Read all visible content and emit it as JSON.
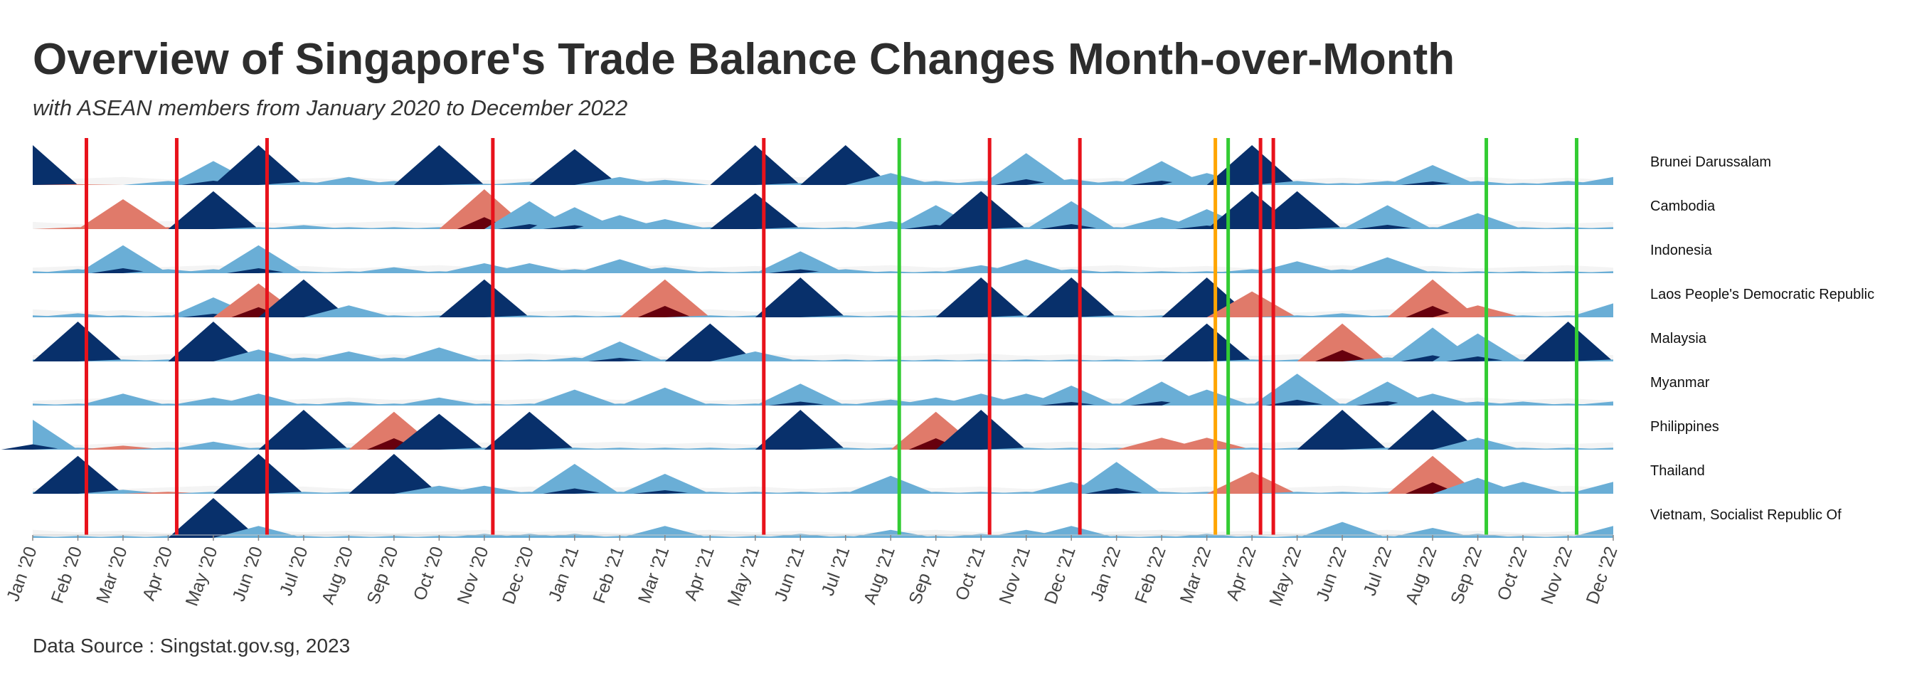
{
  "title": "Overview of Singapore's Trade Balance Changes Month-over-Month",
  "subtitle": "with ASEAN members from January 2020 to December 2022",
  "caption": "Data Source : Singstat.gov.sg, 2023",
  "chart_data": {
    "type": "area",
    "title": "Overview of Singapore's Trade Balance Changes Month-over-Month",
    "subtitle": "with ASEAN members from January 2020 to December 2022",
    "x": [
      "Jan '20",
      "Feb '20",
      "Mar '20",
      "Apr '20",
      "May '20",
      "Jun '20",
      "Jul '20",
      "Aug '20",
      "Sep '20",
      "Oct '20",
      "Nov '20",
      "Dec '20",
      "Jan '21",
      "Feb '21",
      "Mar '21",
      "Apr '21",
      "May '21",
      "Jun '21",
      "Jul '21",
      "Aug '21",
      "Sep '21",
      "Oct '21",
      "Nov '21",
      "Dec '21",
      "Jan '22",
      "Feb '22",
      "Mar '22",
      "Apr '22",
      "May '22",
      "Jun '22",
      "Jul '22",
      "Aug '22",
      "Sep '22",
      "Oct '22",
      "Nov '22",
      "Dec '22"
    ],
    "series": [
      {
        "name": "Brunei Darussalam",
        "values": [
          1.0,
          -0.02,
          0.0,
          0.1,
          0.6,
          1.0,
          0.08,
          0.2,
          0.1,
          1.0,
          0.03,
          0.08,
          0.9,
          0.2,
          0.13,
          0.0,
          1.0,
          0.05,
          1.0,
          0.3,
          0.1,
          0.1,
          0.8,
          0.15,
          0.1,
          0.6,
          0.3,
          1.0,
          0.1,
          0.05,
          0.1,
          0.5,
          0.1,
          0.05,
          0.1,
          0.2
        ]
      },
      {
        "name": "Cambodia",
        "values": [
          0.0,
          -0.05,
          -0.75,
          -0.05,
          0.95,
          0.05,
          0.1,
          0.05,
          0.05,
          0.05,
          -1.0,
          0.7,
          0.55,
          0.35,
          0.25,
          0.05,
          0.9,
          0.05,
          0.05,
          0.2,
          0.6,
          0.95,
          0.05,
          0.7,
          0.05,
          0.3,
          0.5,
          0.95,
          0.95,
          0.05,
          0.6,
          0.05,
          0.4,
          0.05,
          0.05,
          0.05
        ]
      },
      {
        "name": "Indonesia",
        "values": [
          0.05,
          0.1,
          0.7,
          0.1,
          0.1,
          0.7,
          0.05,
          0.05,
          0.15,
          0.05,
          0.25,
          0.25,
          0.1,
          0.35,
          0.15,
          0.05,
          0.05,
          0.55,
          0.1,
          0.05,
          0.05,
          0.2,
          0.35,
          0.1,
          0.05,
          0.05,
          0.05,
          0.1,
          0.3,
          0.1,
          0.4,
          0.05,
          0.05,
          0.05,
          0.05,
          0.05
        ]
      },
      {
        "name": "Laos People's Democratic Republic",
        "values": [
          0.05,
          0.1,
          0.05,
          0.05,
          0.5,
          -0.85,
          0.95,
          0.3,
          0.05,
          0.05,
          0.95,
          0.05,
          0.05,
          0.05,
          -0.95,
          0.05,
          0.05,
          1.0,
          0.05,
          0.05,
          0.05,
          1.0,
          0.05,
          1.0,
          0.05,
          0.05,
          1.0,
          -0.65,
          0.05,
          0.1,
          0.05,
          -0.95,
          -0.3,
          0.05,
          0.05,
          0.35
        ]
      },
      {
        "name": "Malaysia",
        "values": [
          0.05,
          1.0,
          0.05,
          0.05,
          1.0,
          0.3,
          0.1,
          0.25,
          0.1,
          0.35,
          0.05,
          0.05,
          0.1,
          0.5,
          0.05,
          0.95,
          0.25,
          0.05,
          0.05,
          0.05,
          0.05,
          0.05,
          0.05,
          0.05,
          0.05,
          0.05,
          0.95,
          0.05,
          0.05,
          -0.95,
          0.1,
          0.85,
          0.7,
          0.05,
          1.0,
          0.05
        ]
      },
      {
        "name": "Myanmar",
        "values": [
          0.05,
          0.05,
          0.3,
          0.05,
          0.2,
          0.3,
          0.05,
          0.1,
          0.05,
          0.2,
          0.05,
          0.05,
          0.4,
          0.05,
          0.45,
          0.05,
          0.05,
          0.55,
          0.05,
          0.15,
          0.2,
          0.3,
          0.3,
          0.5,
          0.05,
          0.6,
          0.4,
          0.05,
          0.8,
          0.05,
          0.6,
          0.3,
          0.1,
          0.1,
          0.05,
          0.1
        ]
      },
      {
        "name": "Philippines",
        "values": [
          0.75,
          0.05,
          -0.1,
          0.05,
          0.2,
          0.05,
          1.0,
          0.05,
          -0.95,
          0.9,
          0.05,
          0.95,
          0.05,
          0.05,
          0.05,
          0.05,
          0.05,
          1.0,
          0.05,
          0.05,
          -0.95,
          1.0,
          0.05,
          0.05,
          0.05,
          -0.3,
          -0.3,
          0.05,
          0.05,
          1.0,
          0.05,
          1.0,
          0.3,
          0.05,
          0.05,
          0.05
        ]
      },
      {
        "name": "Thailand",
        "values": [
          0.05,
          0.95,
          0.1,
          -0.05,
          0.05,
          1.0,
          0.05,
          0.05,
          1.0,
          0.2,
          0.2,
          0.05,
          0.75,
          0.05,
          0.5,
          0.05,
          0.05,
          0.05,
          0.05,
          0.45,
          0.05,
          0.05,
          0.05,
          0.3,
          0.8,
          0.05,
          0.05,
          -0.55,
          0.05,
          0.05,
          0.05,
          -0.95,
          0.4,
          0.3,
          0.05,
          0.3
        ]
      },
      {
        "name": "Vietnam, Socialist Republic Of",
        "values": [
          0.05,
          0.05,
          0.05,
          0.05,
          1.0,
          0.3,
          0.05,
          0.05,
          0.05,
          0.05,
          0.1,
          0.1,
          0.1,
          0.05,
          0.3,
          0.05,
          0.05,
          0.1,
          0.05,
          0.2,
          0.05,
          0.1,
          0.2,
          0.3,
          0.05,
          0.05,
          0.1,
          0.05,
          0.05,
          0.4,
          0.05,
          0.25,
          0.1,
          0.05,
          0.05,
          0.3
        ]
      }
    ],
    "vlines": [
      {
        "x": "Feb '20",
        "color": "red"
      },
      {
        "x": "Apr '20",
        "color": "red"
      },
      {
        "x": "Jun '20",
        "color": "red"
      },
      {
        "x": "Nov '20",
        "color": "red"
      },
      {
        "x": "May '21",
        "color": "red"
      },
      {
        "x": "Aug '21",
        "color": "green"
      },
      {
        "x": "Oct '21",
        "color": "red"
      },
      {
        "x": "Dec '21",
        "color": "red"
      },
      {
        "x": "Mar '22",
        "color": "orange"
      },
      {
        "x": "Mar '22",
        "color": "green"
      },
      {
        "x": "Apr '22",
        "color": "red"
      },
      {
        "x": "Apr '22",
        "color": "red"
      },
      {
        "x": "Sep '22",
        "color": "green"
      },
      {
        "x": "Nov '22",
        "color": "green"
      }
    ],
    "colors": {
      "positive": "#6aaed6",
      "positive_strong": "#08306b",
      "negative": "#e07a6a",
      "negative_strong": "#67000d",
      "background": "#f4f4f4"
    },
    "legend": "none",
    "grid": false
  }
}
